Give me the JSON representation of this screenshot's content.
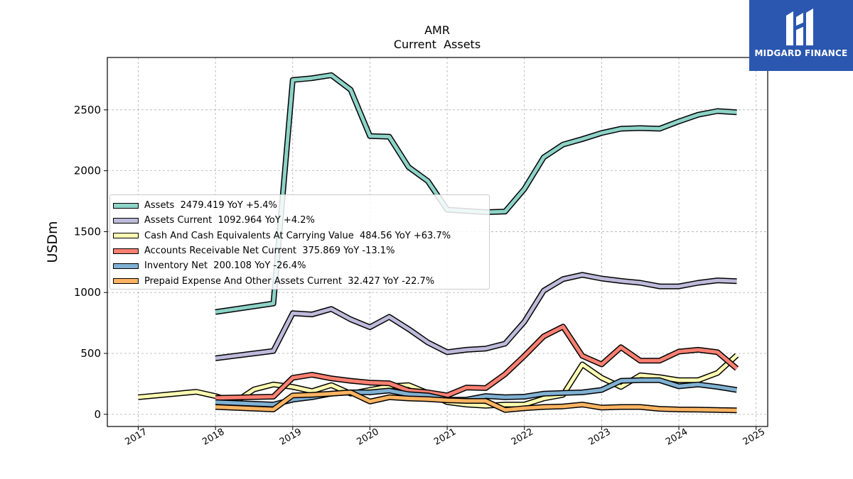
{
  "chart_data": {
    "type": "line",
    "title": "AMR",
    "subtitle": "Current  Assets",
    "ylabel": "USDm",
    "xlabel": "",
    "x_ticks": [
      "2017",
      "2018",
      "2019",
      "2020",
      "2021",
      "2022",
      "2023",
      "2024",
      "2025"
    ],
    "y_ticks": [
      "0",
      "500",
      "1000",
      "1500",
      "2000",
      "2500"
    ],
    "xlim": [
      2016.6,
      2025.15
    ],
    "ylim": [
      -100,
      2930
    ],
    "grid": true,
    "legend_position": "center-left",
    "series": [
      {
        "name": "Assets",
        "legend": "Assets  2479.419 YoY +5.4%",
        "color": "#8dd3c7",
        "x": [
          2018.0,
          2018.75,
          2019.0,
          2019.25,
          2019.5,
          2019.75,
          2020.0,
          2020.25,
          2020.5,
          2020.75,
          2021.0,
          2021.5,
          2021.75,
          2022.0,
          2022.25,
          2022.5,
          2022.75,
          2023.0,
          2023.25,
          2023.5,
          2023.75,
          2024.0,
          2024.25,
          2024.5,
          2024.75
        ],
        "y": [
          840,
          910,
          2745,
          2760,
          2785,
          2665,
          2285,
          2280,
          2030,
          1915,
          1680,
          1660,
          1665,
          1850,
          2110,
          2215,
          2260,
          2310,
          2345,
          2350,
          2345,
          2405,
          2460,
          2490,
          2479.419
        ]
      },
      {
        "name": "Assets Current",
        "legend": "Assets Current  1092.964 YoY +4.2%",
        "color": "#bebada",
        "x": [
          2018.0,
          2018.75,
          2019.0,
          2019.25,
          2019.5,
          2019.75,
          2020.0,
          2020.25,
          2020.5,
          2020.75,
          2021.0,
          2021.25,
          2021.5,
          2021.75,
          2022.0,
          2022.25,
          2022.5,
          2022.75,
          2023.0,
          2023.25,
          2023.5,
          2023.75,
          2024.0,
          2024.25,
          2024.5,
          2024.75
        ],
        "y": [
          460,
          520,
          830,
          820,
          865,
          780,
          715,
          800,
          700,
          590,
          510,
          530,
          540,
          580,
          760,
          1015,
          1110,
          1145,
          1115,
          1095,
          1080,
          1050,
          1050,
          1080,
          1100,
          1092.964
        ]
      },
      {
        "name": "Cash And Cash Equivalents At Carrying Value",
        "legend": "Cash And Cash Equivalents At Carrying Value  484.56 YoY +63.7%",
        "color": "#ffffb3",
        "x": [
          2017.0,
          2017.75,
          2018.0,
          2018.25,
          2018.5,
          2018.75,
          2019.0,
          2019.25,
          2019.5,
          2019.75,
          2020.0,
          2020.25,
          2020.5,
          2020.75,
          2021.0,
          2021.25,
          2021.5,
          2021.75,
          2022.0,
          2022.25,
          2022.5,
          2022.75,
          2023.0,
          2023.25,
          2023.5,
          2023.75,
          2024.0,
          2024.25,
          2024.5,
          2024.75
        ],
        "y": [
          140,
          185,
          150,
          100,
          205,
          245,
          225,
          190,
          240,
          170,
          200,
          230,
          240,
          175,
          100,
          80,
          70,
          80,
          80,
          130,
          160,
          410,
          300,
          225,
          320,
          305,
          280,
          280,
          340,
          484.56
        ]
      },
      {
        "name": "Accounts Receivable Net Current",
        "legend": "Accounts Receivable Net Current  375.869 YoY -13.1%",
        "color": "#fb8072",
        "x": [
          2018.0,
          2018.75,
          2019.0,
          2019.25,
          2019.5,
          2019.75,
          2020.0,
          2020.25,
          2020.5,
          2020.75,
          2021.0,
          2021.25,
          2021.5,
          2021.75,
          2022.0,
          2022.25,
          2022.5,
          2022.75,
          2023.0,
          2023.25,
          2023.5,
          2023.75,
          2024.0,
          2024.25,
          2024.5,
          2024.75
        ],
        "y": [
          135,
          145,
          300,
          325,
          295,
          275,
          260,
          255,
          195,
          180,
          155,
          220,
          215,
          330,
          480,
          640,
          720,
          480,
          410,
          550,
          440,
          440,
          515,
          530,
          510,
          375.869
        ]
      },
      {
        "name": "Inventory Net",
        "legend": "Inventory Net  200.108 YoY -26.4%",
        "color": "#80b1d3",
        "x": [
          2018.0,
          2018.75,
          2019.0,
          2019.25,
          2019.5,
          2019.75,
          2020.0,
          2020.25,
          2020.5,
          2020.75,
          2021.0,
          2021.25,
          2021.5,
          2021.75,
          2022.0,
          2022.25,
          2022.5,
          2022.75,
          2023.0,
          2023.25,
          2023.5,
          2023.75,
          2024.0,
          2024.25,
          2024.5,
          2024.75
        ],
        "y": [
          100,
          80,
          120,
          140,
          170,
          180,
          180,
          195,
          165,
          155,
          120,
          120,
          150,
          140,
          145,
          170,
          175,
          180,
          200,
          275,
          280,
          280,
          230,
          245,
          225,
          200.108
        ]
      },
      {
        "name": "Prepaid Expense And Other Assets Current",
        "legend": "Prepaid Expense And Other Assets Current  32.427 YoY -22.7%",
        "color": "#fdb462",
        "x": [
          2018.0,
          2018.75,
          2019.0,
          2019.25,
          2019.5,
          2019.75,
          2020.0,
          2020.25,
          2020.5,
          2020.75,
          2021.0,
          2021.25,
          2021.5,
          2021.75,
          2022.0,
          2022.25,
          2022.5,
          2022.75,
          2023.0,
          2023.25,
          2023.5,
          2023.75,
          2024.0,
          2024.25,
          2024.5,
          2024.75
        ],
        "y": [
          60,
          40,
          155,
          160,
          170,
          180,
          105,
          140,
          130,
          125,
          115,
          110,
          110,
          35,
          50,
          60,
          65,
          80,
          55,
          60,
          60,
          45,
          40,
          38,
          35,
          32.427
        ]
      }
    ]
  },
  "brand": {
    "name": "MIDGARD FINANCE",
    "color": "#2b57b0"
  }
}
